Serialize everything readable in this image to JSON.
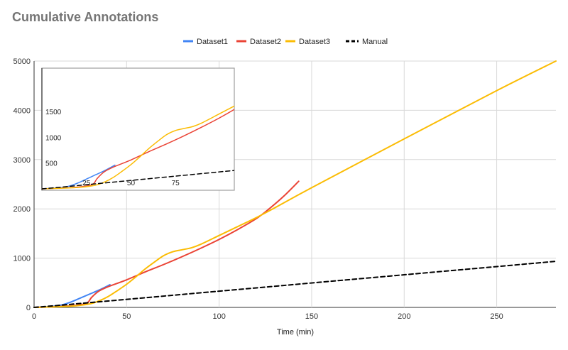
{
  "chart_data": {
    "type": "line",
    "title": "Cumulative Annotations",
    "xlabel": "Time (min)",
    "ylabel": "",
    "xlim": [
      0,
      282
    ],
    "ylim": [
      0,
      5000
    ],
    "x_ticks": [
      0,
      50,
      100,
      150,
      200,
      250
    ],
    "y_ticks": [
      0,
      1000,
      2000,
      3000,
      4000,
      5000
    ],
    "grid": true,
    "legend": "top",
    "series": [
      {
        "name": "Dataset1",
        "color": "#4285f4",
        "dash": false,
        "points": [
          [
            0,
            0
          ],
          [
            10,
            20
          ],
          [
            15,
            50
          ],
          [
            20,
            110
          ],
          [
            25,
            190
          ],
          [
            30,
            270
          ],
          [
            35,
            350
          ],
          [
            41,
            460
          ]
        ]
      },
      {
        "name": "Dataset2",
        "color": "#ea4335",
        "dash": false,
        "points": [
          [
            0,
            0
          ],
          [
            15,
            20
          ],
          [
            25,
            55
          ],
          [
            29,
            100
          ],
          [
            31,
            200
          ],
          [
            35,
            330
          ],
          [
            40,
            420
          ],
          [
            50,
            560
          ],
          [
            60,
            720
          ],
          [
            70,
            870
          ],
          [
            80,
            1030
          ],
          [
            90,
            1200
          ],
          [
            100,
            1380
          ],
          [
            110,
            1580
          ],
          [
            120,
            1800
          ],
          [
            127,
            2000
          ],
          [
            135,
            2260
          ],
          [
            143,
            2560
          ]
        ]
      },
      {
        "name": "Dataset3",
        "color": "#fbbc04",
        "dash": false,
        "points": [
          [
            0,
            0
          ],
          [
            20,
            25
          ],
          [
            30,
            70
          ],
          [
            35,
            130
          ],
          [
            40,
            220
          ],
          [
            45,
            340
          ],
          [
            50,
            470
          ],
          [
            55,
            620
          ],
          [
            60,
            780
          ],
          [
            65,
            920
          ],
          [
            70,
            1050
          ],
          [
            75,
            1130
          ],
          [
            80,
            1170
          ],
          [
            85,
            1210
          ],
          [
            90,
            1280
          ],
          [
            100,
            1460
          ],
          [
            110,
            1640
          ],
          [
            120,
            1820
          ],
          [
            130,
            2020
          ],
          [
            150,
            2430
          ],
          [
            200,
            3420
          ],
          [
            250,
            4400
          ],
          [
            282,
            5000
          ]
        ]
      },
      {
        "name": "Manual",
        "color": "#000000",
        "dash": true,
        "points": [
          [
            0,
            0
          ],
          [
            10,
            30
          ],
          [
            282,
            935
          ]
        ]
      }
    ],
    "inset": {
      "xlim": [
        0,
        108
      ],
      "ylim": [
        0,
        2200
      ],
      "x_ticks": [
        25,
        50,
        75
      ],
      "y_ticks": [
        500,
        1000,
        1500
      ]
    }
  }
}
